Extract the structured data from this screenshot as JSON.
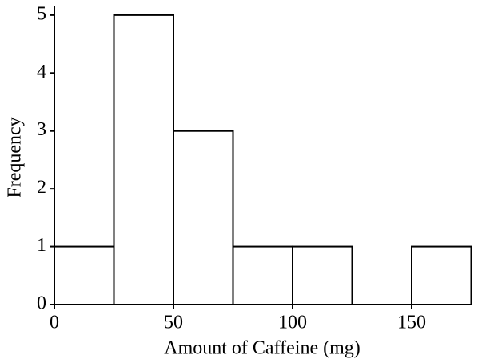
{
  "chart_data": {
    "type": "histogram",
    "x_label": "Amount of Caffeine (mg)",
    "y_label": "Frequency",
    "bins": [
      0,
      25,
      50,
      75,
      100,
      125,
      150,
      175
    ],
    "values": [
      1,
      5,
      3,
      1,
      1,
      0,
      1
    ],
    "color": "#ffffff",
    "edge_color": "#000000",
    "xlim": [
      0,
      175
    ],
    "ylim": [
      0,
      5.15
    ],
    "xticks": [
      0,
      50,
      100,
      150
    ],
    "yticks": [
      0,
      1,
      2,
      3,
      4,
      5
    ],
    "grid": false
  }
}
